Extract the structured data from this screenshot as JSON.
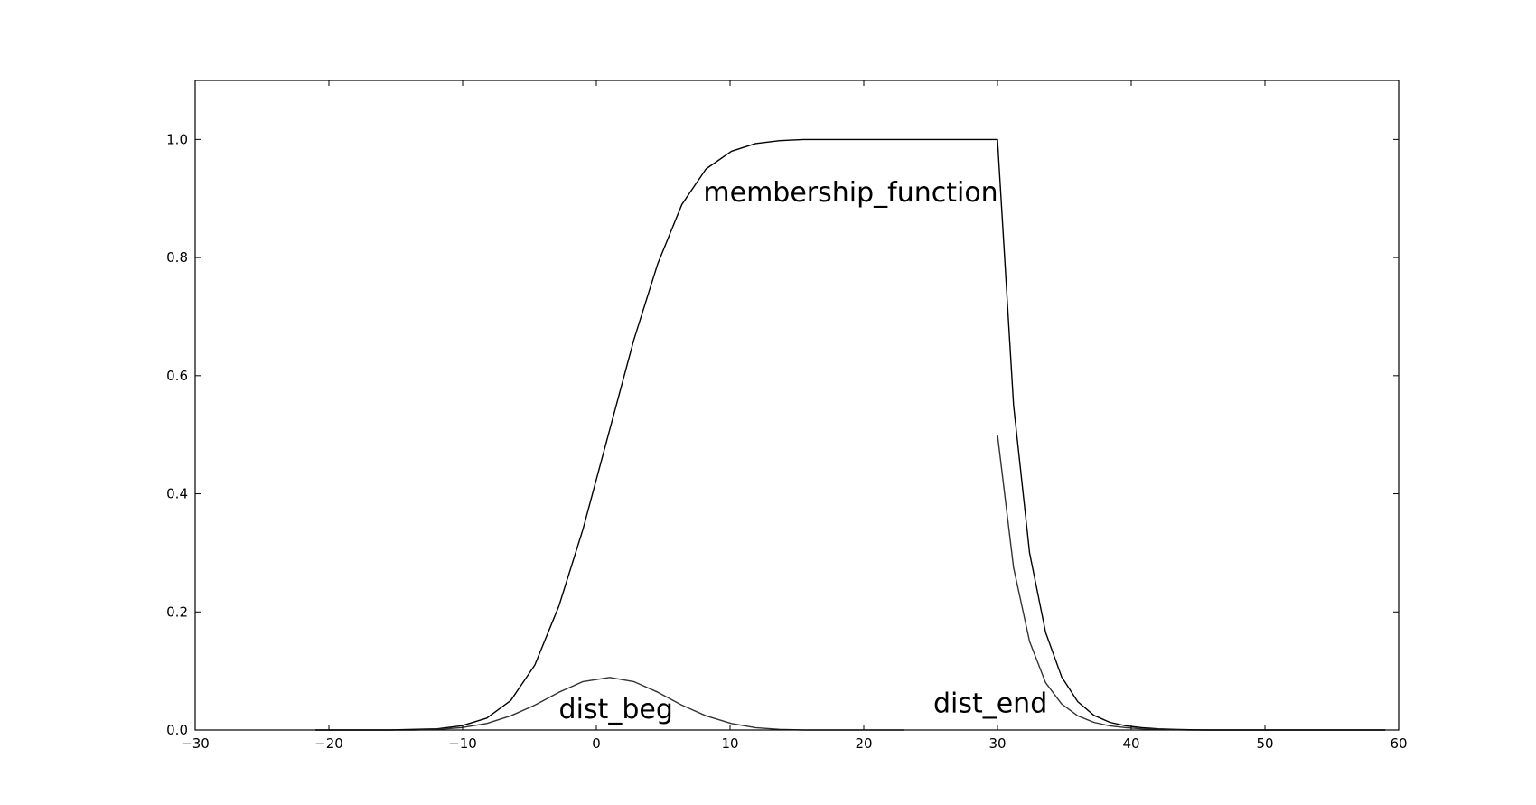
{
  "chart_data": {
    "type": "line",
    "title": "",
    "xlabel": "",
    "ylabel": "",
    "xlim": [
      -30,
      60
    ],
    "ylim": [
      0.0,
      1.1
    ],
    "grid": false,
    "line_color": "#000000",
    "secondary_line_color": "#333333",
    "x_ticks": [
      -30,
      -20,
      -10,
      0,
      10,
      20,
      30,
      40,
      50,
      60
    ],
    "x_tick_labels": [
      "−30",
      "−20",
      "−10",
      "0",
      "10",
      "20",
      "30",
      "40",
      "50",
      "60"
    ],
    "y_ticks": [
      0.0,
      0.2,
      0.4,
      0.6,
      0.8,
      1.0
    ],
    "y_tick_labels": [
      "0.0",
      "0.2",
      "0.4",
      "0.6",
      "0.8",
      "1.0"
    ],
    "series": [
      {
        "key": "membership",
        "x": [
          -21.0,
          -19.1,
          -17.3,
          -15.5,
          -13.7,
          -11.9,
          -10.1,
          -8.2,
          -6.4,
          -4.6,
          -2.8,
          -1.0,
          0.9,
          2.8,
          4.6,
          6.4,
          8.2,
          10.1,
          11.9,
          13.7,
          15.5,
          20,
          25,
          30.0,
          31.2,
          32.4,
          33.6,
          34.8,
          36.0,
          37.2,
          38.4,
          39.6,
          40.8,
          42.0,
          43.2,
          44.4,
          45.6,
          47,
          50,
          55,
          59
        ],
        "y": [
          0.0,
          0.0,
          0.0,
          0.0,
          0.001,
          0.002,
          0.007,
          0.02,
          0.05,
          0.11,
          0.21,
          0.34,
          0.5,
          0.66,
          0.79,
          0.89,
          0.95,
          0.98,
          0.993,
          0.998,
          1.0,
          1.0,
          1.0,
          1.0,
          0.55,
          0.3,
          0.165,
          0.09,
          0.048,
          0.025,
          0.013,
          0.007,
          0.004,
          0.002,
          0.001,
          0.0005,
          0.0,
          0.0,
          0.0,
          0.0,
          0.0
        ]
      },
      {
        "key": "dist_beg",
        "x": [
          -21.0,
          -17.3,
          -13.7,
          -11.9,
          -10.1,
          -8.2,
          -6.4,
          -4.6,
          -2.8,
          -1.0,
          1.0,
          2.8,
          4.6,
          6.4,
          8.2,
          10.1,
          11.9,
          13.7,
          15.5,
          17.3,
          20,
          23
        ],
        "y": [
          0.0,
          0.0,
          0.0,
          0.001,
          0.004,
          0.011,
          0.024,
          0.042,
          0.064,
          0.082,
          0.089,
          0.082,
          0.064,
          0.042,
          0.024,
          0.011,
          0.004,
          0.001,
          0.0,
          0.0,
          0.0,
          0.0
        ]
      },
      {
        "key": "dist_end",
        "x": [
          30.0,
          31.2,
          32.4,
          33.6,
          34.8,
          36.0,
          37.2,
          38.4,
          39.6,
          40.8,
          42.0,
          43.2,
          44.4,
          45.6,
          47,
          50,
          55,
          59
        ],
        "y": [
          0.5,
          0.275,
          0.15,
          0.08,
          0.044,
          0.024,
          0.013,
          0.007,
          0.004,
          0.002,
          0.001,
          0.0005,
          0.0,
          0.0,
          0.0,
          0.0,
          0.0,
          0.0
        ]
      }
    ],
    "annotations": [
      {
        "key": "membership_label",
        "text": "membership_function",
        "x": 8,
        "y": 0.895
      },
      {
        "key": "dist_beg_label",
        "text": "dist_beg",
        "x": -2.8,
        "y": 0.02
      },
      {
        "key": "dist_end_label",
        "text": "dist_end",
        "x": 25.2,
        "y": 0.03
      }
    ]
  }
}
